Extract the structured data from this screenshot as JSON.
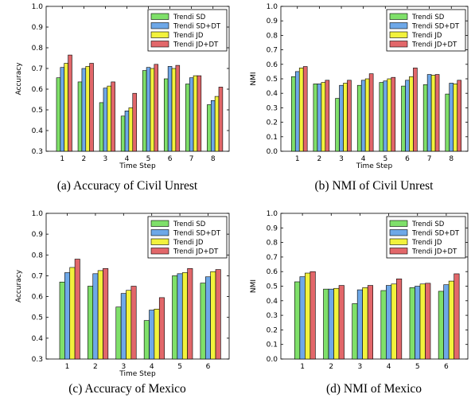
{
  "chart_data": [
    {
      "type": "bar",
      "caption": "(a) Accuracy of Civil Unrest",
      "xlabel": "Time Step",
      "ylabel": "Accuracy",
      "ylim": [
        0.3,
        1.0
      ],
      "yticks": [
        "0.3",
        "0.4",
        "0.5",
        "0.6",
        "0.7",
        "0.8",
        "0.9",
        "1.0"
      ],
      "categories": [
        "1",
        "2",
        "3",
        "4",
        "5",
        "6",
        "7",
        "8"
      ],
      "legend_position": "top-right",
      "series": [
        {
          "name": "Trendi SD",
          "color": "#7fe06a",
          "values": [
            0.655,
            0.635,
            0.535,
            0.47,
            0.69,
            0.65,
            0.625,
            0.525
          ]
        },
        {
          "name": "Trendi SD+DT",
          "color": "#6ea8e8",
          "values": [
            0.705,
            0.7,
            0.605,
            0.495,
            0.705,
            0.71,
            0.655,
            0.545
          ]
        },
        {
          "name": "Trendi JD",
          "color": "#f2f23c",
          "values": [
            0.725,
            0.71,
            0.615,
            0.51,
            0.7,
            0.7,
            0.665,
            0.565
          ]
        },
        {
          "name": "Trendi JD+DT",
          "color": "#e2676a",
          "values": [
            0.765,
            0.725,
            0.635,
            0.58,
            0.72,
            0.715,
            0.665,
            0.61
          ]
        }
      ]
    },
    {
      "type": "bar",
      "caption": "(b) NMI of Civil Unrest",
      "xlabel": "Time Step",
      "ylabel": "NMI",
      "ylim": [
        0.0,
        1.0
      ],
      "yticks": [
        "0.0",
        "0.1",
        "0.2",
        "0.3",
        "0.4",
        "0.5",
        "0.6",
        "0.7",
        "0.8",
        "0.9",
        "1.0"
      ],
      "categories": [
        "1",
        "2",
        "3",
        "4",
        "5",
        "6",
        "7",
        "8"
      ],
      "legend_position": "top-right",
      "series": [
        {
          "name": "Trendi SD",
          "color": "#7fe06a",
          "values": [
            0.515,
            0.465,
            0.365,
            0.455,
            0.475,
            0.45,
            0.46,
            0.395
          ]
        },
        {
          "name": "Trendi SD+DT",
          "color": "#6ea8e8",
          "values": [
            0.55,
            0.465,
            0.455,
            0.49,
            0.485,
            0.49,
            0.53,
            0.47
          ]
        },
        {
          "name": "Trendi JD",
          "color": "#f2f23c",
          "values": [
            0.575,
            0.475,
            0.47,
            0.5,
            0.5,
            0.515,
            0.525,
            0.465
          ]
        },
        {
          "name": "Trendi JD+DT",
          "color": "#e2676a",
          "values": [
            0.585,
            0.49,
            0.49,
            0.535,
            0.51,
            0.575,
            0.53,
            0.49
          ]
        }
      ]
    },
    {
      "type": "bar",
      "caption": "(c) Accuracy of Mexico",
      "xlabel": "Time Step",
      "ylabel": "Accuracy",
      "ylim": [
        0.3,
        1.0
      ],
      "yticks": [
        "0.3",
        "0.4",
        "0.5",
        "0.6",
        "0.7",
        "0.8",
        "0.9",
        "1.0"
      ],
      "categories": [
        "1",
        "2",
        "3",
        "4",
        "5",
        "6"
      ],
      "legend_position": "top-right",
      "series": [
        {
          "name": "Trendi SD",
          "color": "#7fe06a",
          "values": [
            0.67,
            0.65,
            0.55,
            0.485,
            0.7,
            0.665
          ]
        },
        {
          "name": "Trendi SD+DT",
          "color": "#6ea8e8",
          "values": [
            0.715,
            0.71,
            0.615,
            0.535,
            0.71,
            0.695
          ]
        },
        {
          "name": "Trendi JD",
          "color": "#f2f23c",
          "values": [
            0.74,
            0.725,
            0.63,
            0.54,
            0.715,
            0.72
          ]
        },
        {
          "name": "Trendi JD+DT",
          "color": "#e2676a",
          "values": [
            0.78,
            0.735,
            0.65,
            0.595,
            0.735,
            0.73
          ]
        }
      ]
    },
    {
      "type": "bar",
      "caption": "(d) NMI of Mexico",
      "xlabel": "",
      "ylabel": "NMI",
      "ylim": [
        0.0,
        1.0
      ],
      "yticks": [
        "0.0",
        "0.1",
        "0.2",
        "0.3",
        "0.4",
        "0.5",
        "0.6",
        "0.7",
        "0.8",
        "0.9",
        "1.0"
      ],
      "categories": [
        "1",
        "2",
        "3",
        "4",
        "5",
        "6"
      ],
      "legend_position": "top-right",
      "series": [
        {
          "name": "Trendi SD",
          "color": "#7fe06a",
          "values": [
            0.53,
            0.48,
            0.38,
            0.47,
            0.49,
            0.465
          ]
        },
        {
          "name": "Trendi SD+DT",
          "color": "#6ea8e8",
          "values": [
            0.565,
            0.48,
            0.475,
            0.505,
            0.5,
            0.51
          ]
        },
        {
          "name": "Trendi JD",
          "color": "#f2f23c",
          "values": [
            0.59,
            0.485,
            0.49,
            0.515,
            0.515,
            0.535
          ]
        },
        {
          "name": "Trendi JD+DT",
          "color": "#e2676a",
          "values": [
            0.6,
            0.505,
            0.505,
            0.55,
            0.52,
            0.585
          ]
        }
      ]
    }
  ]
}
